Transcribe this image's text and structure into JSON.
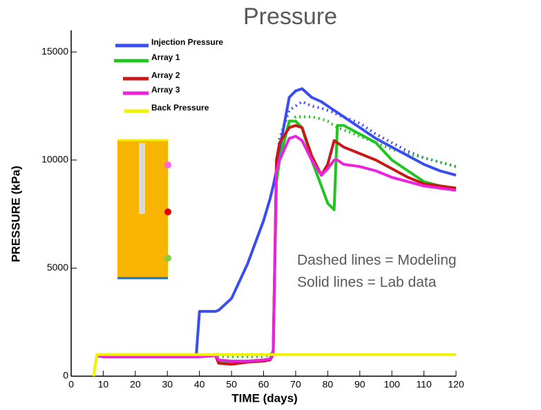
{
  "chart_data": {
    "type": "line",
    "title": "Pressure",
    "xlabel": "TIME (days)",
    "ylabel": "PRESSURE (kPa)",
    "annotations": [
      "Dashed lines = Modeling",
      "Solid lines = Lab data"
    ],
    "x": [
      0,
      7,
      8,
      10,
      20,
      30,
      39,
      40,
      45,
      46,
      50,
      55,
      60,
      62,
      63,
      64,
      65,
      68,
      70,
      72,
      75,
      78,
      80,
      82,
      83,
      85,
      90,
      95,
      100,
      105,
      110,
      115,
      120
    ],
    "xlim": [
      0,
      120
    ],
    "xticks": [
      0,
      10,
      20,
      30,
      40,
      50,
      60,
      70,
      80,
      90,
      100,
      110,
      120
    ],
    "ylim": [
      0,
      16000
    ],
    "yticks": [
      0,
      5000,
      10000,
      15000
    ],
    "series": [
      {
        "name": "Injection Pressure",
        "color": "#3a4df0",
        "values": [
          null,
          null,
          950,
          950,
          950,
          950,
          950,
          3000,
          3000,
          3050,
          3600,
          5200,
          7200,
          8200,
          8800,
          9500,
          10500,
          12900,
          13200,
          13300,
          12900,
          12700,
          12500,
          12300,
          12200,
          12000,
          11500,
          11000,
          10600,
          10200,
          9800,
          9500,
          9300
        ],
        "model": [
          null,
          null,
          1000,
          1000,
          1000,
          1000,
          1000,
          1000,
          1000,
          1000,
          1000,
          1000,
          1000,
          1000,
          1000,
          9500,
          11000,
          12300,
          12500,
          12700,
          12500,
          12400,
          12300,
          12200,
          12100,
          12000,
          11700,
          11200,
          10800,
          10400,
          10100,
          9900,
          9700
        ]
      },
      {
        "name": "Array 1",
        "color": "#22c422",
        "values": [
          null,
          null,
          950,
          900,
          900,
          900,
          900,
          900,
          950,
          700,
          650,
          700,
          750,
          800,
          1200,
          9000,
          10000,
          11800,
          11800,
          11500,
          10000,
          8800,
          8000,
          7700,
          11600,
          11600,
          11200,
          10800,
          10000,
          9500,
          9000,
          8800,
          8700
        ],
        "model": [
          null,
          null,
          950,
          950,
          950,
          950,
          950,
          950,
          950,
          900,
          900,
          900,
          900,
          1000,
          1200,
          9000,
          10500,
          11700,
          12000,
          12000,
          12000,
          11900,
          11800,
          11600,
          11500,
          11400,
          11100,
          10800,
          10500,
          10300,
          10100,
          9900,
          9700
        ]
      },
      {
        "name": "Array 2",
        "color": "#c81818",
        "values": [
          null,
          null,
          950,
          900,
          900,
          900,
          900,
          900,
          950,
          600,
          550,
          650,
          700,
          750,
          1000,
          10000,
          10800,
          11500,
          11600,
          11500,
          10200,
          9300,
          9800,
          10900,
          10800,
          10600,
          10300,
          10000,
          9600,
          9200,
          8900,
          8800,
          8700
        ]
      },
      {
        "name": "Array 3",
        "color": "#ee22dd",
        "values": [
          null,
          null,
          950,
          900,
          900,
          900,
          900,
          900,
          950,
          750,
          700,
          700,
          750,
          800,
          1000,
          9500,
          10000,
          11000,
          11100,
          10900,
          10000,
          9300,
          9600,
          10000,
          10000,
          9800,
          9700,
          9500,
          9200,
          9000,
          8800,
          8700,
          8600
        ]
      },
      {
        "name": "Back Pressure",
        "color": "#f2f200",
        "values": [
          null,
          0,
          1000,
          1000,
          1000,
          1000,
          1000,
          1000,
          1000,
          1000,
          1000,
          1000,
          1000,
          1000,
          1000,
          1000,
          1000,
          1000,
          1000,
          1000,
          1000,
          1000,
          1000,
          1000,
          1000,
          1000,
          1000,
          1000,
          1000,
          1000,
          1000,
          1000,
          1000
        ]
      }
    ]
  }
}
